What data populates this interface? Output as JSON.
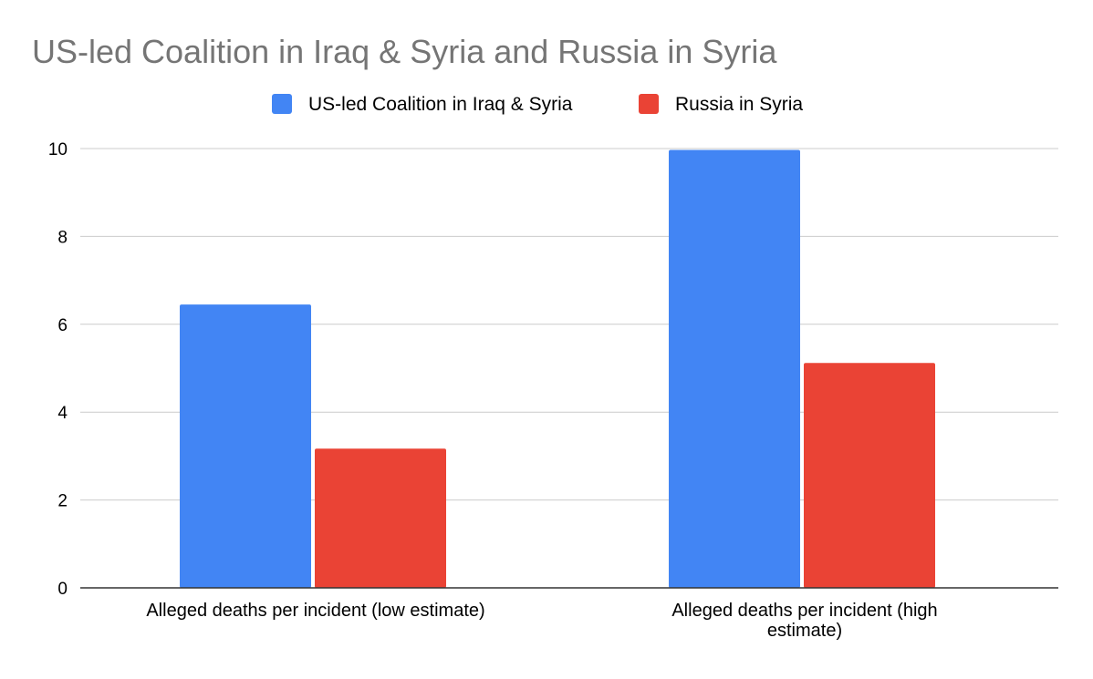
{
  "chart_data": {
    "type": "bar",
    "title": "US-led Coalition in Iraq & Syria and Russia in Syria",
    "xlabel": "",
    "ylabel": "",
    "categories": [
      [
        "Alleged deaths per incident (low estimate)"
      ],
      [
        "Alleged deaths per incident (high",
        "estimate)"
      ]
    ],
    "series": [
      {
        "name": "US-led Coalition in Iraq & Syria",
        "color": "#4285f4",
        "values": [
          6.45,
          9.97
        ]
      },
      {
        "name": "Russia in Syria",
        "color": "#ea4335",
        "values": [
          3.17,
          5.12
        ]
      }
    ],
    "ylim": [
      0,
      10
    ],
    "yticks": [
      "0",
      "2",
      "4",
      "6",
      "8",
      "10"
    ],
    "grid": true,
    "legend_position": "top"
  },
  "colors": {
    "title": "#757575",
    "gridline": "#cccccc",
    "axis": "#333333",
    "text": "#000000"
  }
}
